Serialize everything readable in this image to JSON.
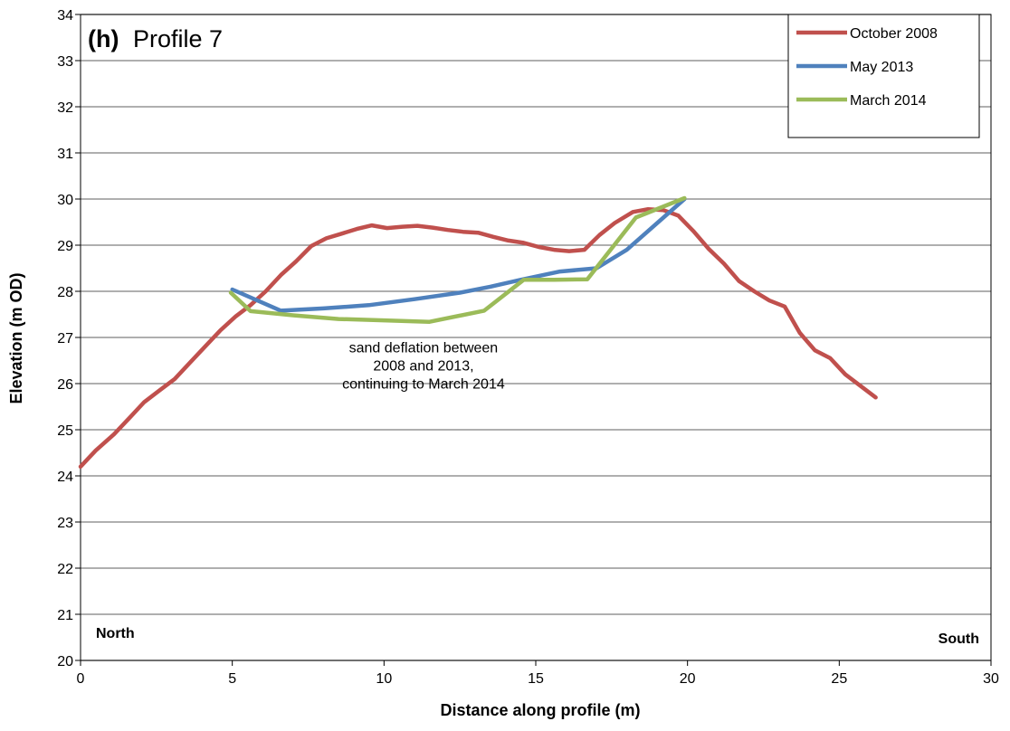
{
  "chart_data": {
    "type": "line",
    "title_prefix": "(h)",
    "title": "Profile 7",
    "xlabel": "Distance along profile (m)",
    "ylabel": "Elevation (m OD)",
    "xlim": [
      0,
      30
    ],
    "ylim": [
      20,
      34
    ],
    "xticks": [
      0,
      5,
      10,
      15,
      20,
      25,
      30
    ],
    "yticks": [
      20,
      21,
      22,
      23,
      24,
      25,
      26,
      27,
      28,
      29,
      30,
      31,
      32,
      33,
      34
    ],
    "grid": "horizontal",
    "legend_position": "top-right",
    "series": [
      {
        "name": "October 2008",
        "color": "#c0504d",
        "x": [
          0,
          0.5,
          1.1,
          1.6,
          2.1,
          2.6,
          3.1,
          3.6,
          4.1,
          4.6,
          5.1,
          5.6,
          6.1,
          6.6,
          7.1,
          7.6,
          8.1,
          8.6,
          9.1,
          9.6,
          10.1,
          10.6,
          11.1,
          11.6,
          12.1,
          12.6,
          13.1,
          13.6,
          14.1,
          14.6,
          15.1,
          15.6,
          16.1,
          16.6,
          17.1,
          17.6,
          18.2,
          18.7,
          19.2,
          19.7,
          20.2,
          20.7,
          21.2,
          21.7,
          22.2,
          22.7,
          23.2,
          23.7,
          24.2,
          24.7,
          25.2,
          25.7,
          26.2
        ],
        "y": [
          24.2,
          24.55,
          24.9,
          25.25,
          25.6,
          25.85,
          26.1,
          26.45,
          26.8,
          27.15,
          27.45,
          27.7,
          28.0,
          28.35,
          28.65,
          28.98,
          29.15,
          29.25,
          29.35,
          29.43,
          29.37,
          29.4,
          29.42,
          29.38,
          29.33,
          29.29,
          29.27,
          29.18,
          29.1,
          29.05,
          28.96,
          28.9,
          28.87,
          28.9,
          29.22,
          29.48,
          29.72,
          29.78,
          29.76,
          29.64,
          29.3,
          28.92,
          28.6,
          28.22,
          28.0,
          27.8,
          27.67,
          27.1,
          26.72,
          26.55,
          26.2,
          25.95,
          25.7
        ]
      },
      {
        "name": "May 2013",
        "color": "#4f81bd",
        "x": [
          5.0,
          6.6,
          8.0,
          9.5,
          11.0,
          12.5,
          13.5,
          14.5,
          15.8,
          17.0,
          18.0,
          19.9
        ],
        "y": [
          28.04,
          27.58,
          27.63,
          27.7,
          27.83,
          27.97,
          28.1,
          28.25,
          28.43,
          28.5,
          28.9,
          30.0
        ]
      },
      {
        "name": "March 2014",
        "color": "#9bbb59",
        "x": [
          4.95,
          5.6,
          7.0,
          8.5,
          10.0,
          11.5,
          13.3,
          14.6,
          15.6,
          16.7,
          18.3,
          19.9
        ],
        "y": [
          27.97,
          27.57,
          27.48,
          27.4,
          27.37,
          27.34,
          27.58,
          28.25,
          28.25,
          28.26,
          29.6,
          30.02
        ]
      }
    ],
    "annotation": {
      "lines": [
        "sand  deflation between",
        "2008 and 2013,",
        "continuing to March 2014"
      ],
      "x": 11.3,
      "y": 26.4
    },
    "corner_labels": {
      "left": "North",
      "right": "South"
    }
  }
}
